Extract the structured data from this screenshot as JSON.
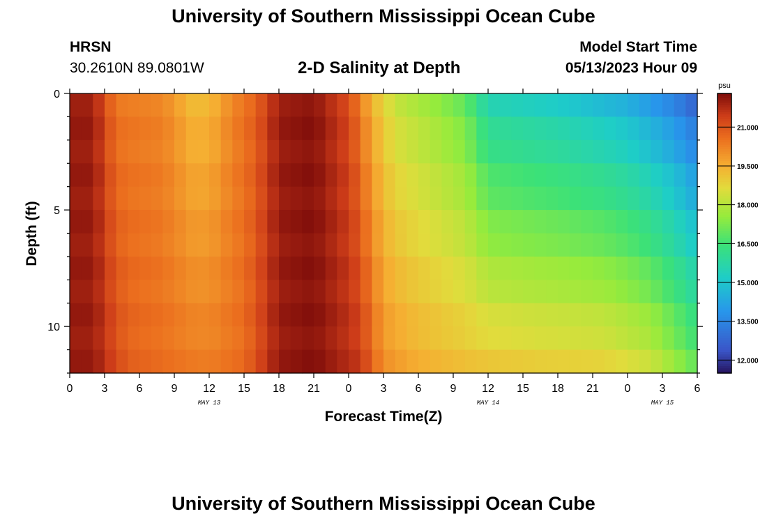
{
  "header": {
    "title": "University of Southern Mississippi Ocean Cube",
    "station": "HRSN",
    "coords": "30.2610N  89.0801W",
    "plot_title": "2-D Salinity at Depth",
    "model_label": "Model Start Time",
    "model_time": "05/13/2023 Hour 09"
  },
  "footer": {
    "title": "University of Southern Mississippi Ocean Cube"
  },
  "chart_data": {
    "type": "heatmap",
    "title": "2-D Salinity at Depth",
    "xlabel": "Forecast Time(Z)",
    "ylabel": "Depth (ft)",
    "x_range_hours": [
      0,
      54
    ],
    "y_range_ft": [
      0,
      12
    ],
    "x_tick_labels": [
      "0",
      "3",
      "6",
      "9",
      "12",
      "15",
      "18",
      "21",
      "0",
      "3",
      "6",
      "9",
      "12",
      "15",
      "18",
      "21",
      "0",
      "3",
      "6"
    ],
    "y_tick_labels": [
      "0",
      "5",
      "10"
    ],
    "day_labels": [
      {
        "label": "MAY 13",
        "hour": 12
      },
      {
        "label": "MAY 14",
        "hour": 36
      },
      {
        "label": "MAY 15",
        "hour": 51
      }
    ],
    "colorbar": {
      "unit": "psu",
      "min": 11.5,
      "max": 22.3,
      "ticks": [
        "21.000",
        "19.500",
        "18.000",
        "16.500",
        "15.000",
        "13.500",
        "12.000"
      ],
      "tick_values": [
        21.0,
        19.5,
        18.0,
        16.5,
        15.0,
        13.5,
        12.0
      ]
    },
    "time_columns": 54,
    "depth_layers": 12,
    "description_values_psu": {
      "hour_0_2_all_depths": 22.0,
      "hour_10_12_surface": 19.3,
      "hour_18_21_all_depths": 22.2,
      "hour_30_surface": 17.6,
      "hour_36_surface": 15.5,
      "hour_54_surface": 12.5,
      "hour_54_bottom": 17.0
    }
  }
}
